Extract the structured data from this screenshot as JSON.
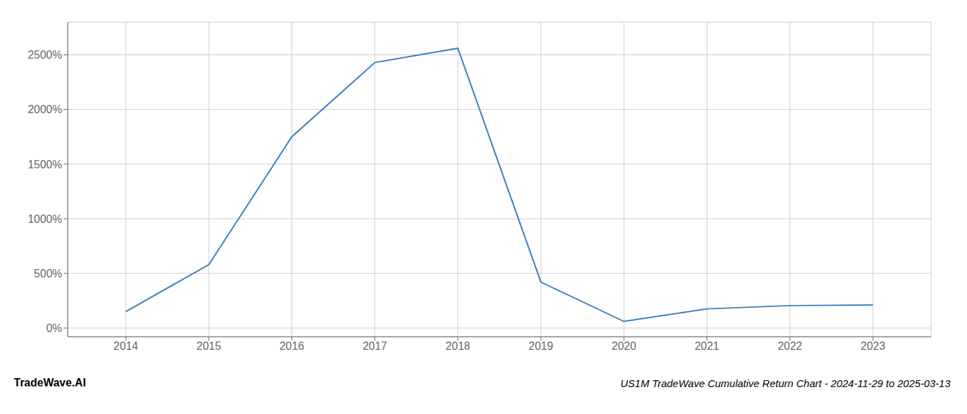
{
  "chart_data": {
    "type": "line",
    "title": "US1M TradeWave Cumulative Return Chart - 2024-11-29 to 2025-03-13",
    "annotations": [
      "TradeWave.AI"
    ],
    "x": [
      2014,
      2015,
      2016,
      2017,
      2018,
      2019,
      2020,
      2021,
      2022,
      2023
    ],
    "values": [
      150,
      580,
      1750,
      2430,
      2560,
      420,
      60,
      175,
      205,
      210
    ],
    "color": "#3a7ebf",
    "xlim": [
      2013.3,
      2023.7
    ],
    "xticks": [
      2014,
      2015,
      2016,
      2017,
      2018,
      2019,
      2020,
      2021,
      2022,
      2023
    ],
    "ylim": [
      -80,
      2800
    ],
    "yticks": [
      {
        "value": 0,
        "label": "0%"
      },
      {
        "value": 500,
        "label": "500%"
      },
      {
        "value": 1000,
        "label": "1000%"
      },
      {
        "value": 1500,
        "label": "1500%"
      },
      {
        "value": 2000,
        "label": "2000%"
      },
      {
        "value": 2500,
        "label": "2500%"
      }
    ],
    "grid": true
  }
}
